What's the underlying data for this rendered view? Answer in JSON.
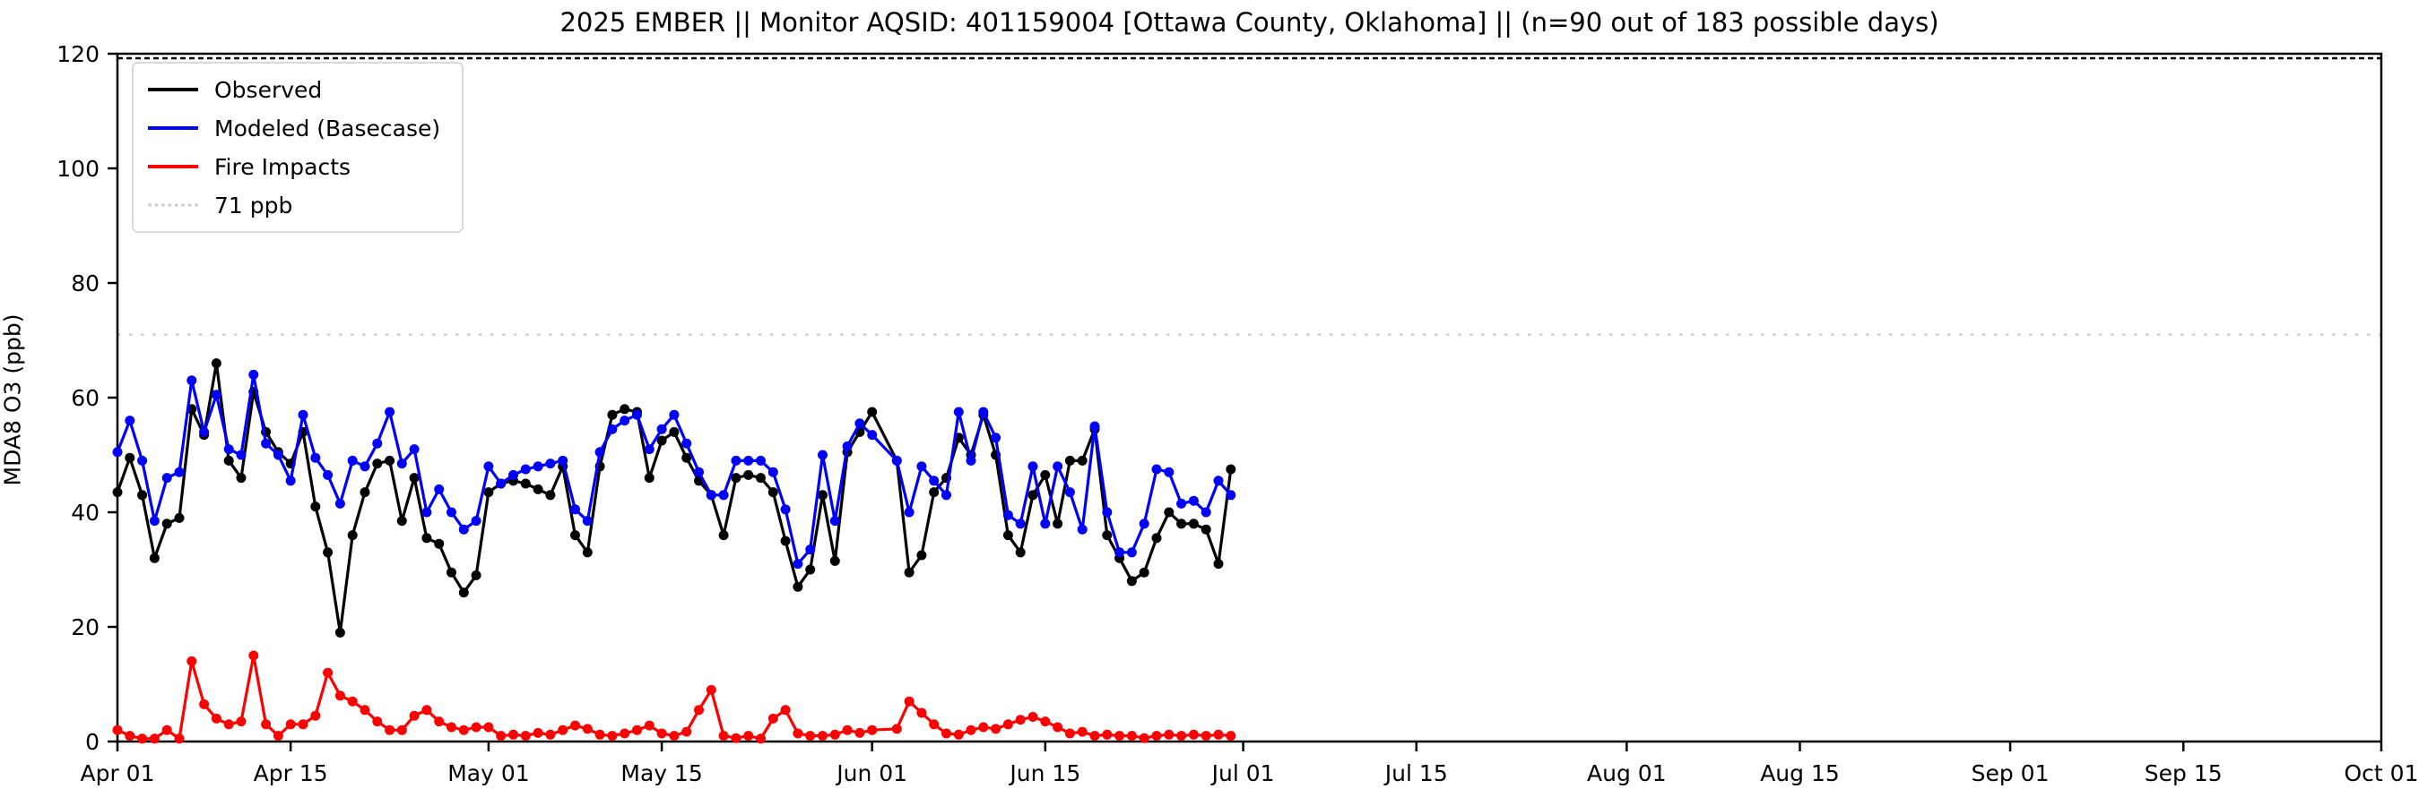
{
  "title": "2025 EMBER || Monitor AQSID: 401159004 [Ottawa County, Oklahoma] || (n=90 out of 183 possible days)",
  "axes": {
    "ylabel": "MDA8 O3 (ppb)",
    "y_ticks": [
      0,
      20,
      40,
      60,
      80,
      100,
      120
    ],
    "x_ticks": [
      {
        "label": "Apr 01",
        "day": 0
      },
      {
        "label": "Apr 15",
        "day": 14
      },
      {
        "label": "May 01",
        "day": 30
      },
      {
        "label": "May 15",
        "day": 44
      },
      {
        "label": "Jun 01",
        "day": 61
      },
      {
        "label": "Jun 15",
        "day": 75
      },
      {
        "label": "Jul 01",
        "day": 91
      },
      {
        "label": "Jul 15",
        "day": 105
      },
      {
        "label": "Aug 01",
        "day": 122
      },
      {
        "label": "Aug 15",
        "day": 136
      },
      {
        "label": "Sep 01",
        "day": 153
      },
      {
        "label": "Sep 15",
        "day": 167
      },
      {
        "label": "Oct 01",
        "day": 183
      }
    ]
  },
  "legend": [
    {
      "label": "Observed",
      "color": "#000000",
      "style": "solid"
    },
    {
      "label": "Modeled (Basecase)",
      "color": "#0000ff",
      "style": "solid"
    },
    {
      "label": "Fire Impacts",
      "color": "#ff0000",
      "style": "solid"
    },
    {
      "label": "71 ppb",
      "color": "#d3d3d3",
      "style": "dotted"
    }
  ],
  "chart_data": {
    "type": "line",
    "title": "2025 EMBER || Monitor AQSID: 401159004 [Ottawa County, Oklahoma] || (n=90 out of 183 possible days)",
    "xlabel": "",
    "ylabel": "MDA8 O3 (ppb)",
    "ylim": [
      0,
      120
    ],
    "x_span_days": 183,
    "grid": false,
    "legend_position": "upper left",
    "threshold_line": {
      "label": "71 ppb",
      "value_ppb": 71,
      "color": "#d3d3d3",
      "linestyle": "dotted"
    },
    "upper_dotted_line": {
      "value_ppb": 120,
      "color": "#000000",
      "linestyle": "dotted"
    },
    "n_days_observed": 90,
    "n_days_possible": 183,
    "missing_dates": [
      "Jun 02"
    ],
    "series_meta": [
      {
        "key": "observed",
        "name": "Observed",
        "color": "#000000"
      },
      {
        "key": "modeled",
        "name": "Modeled (Basecase)",
        "color": "#0000ff"
      },
      {
        "key": "fire",
        "name": "Fire Impacts",
        "color": "#ff0000"
      }
    ],
    "columns": [
      "date",
      "day_index",
      "observed_ppb",
      "modeled_basecase_ppb",
      "fire_impacts_ppb"
    ],
    "points": [
      [
        "Apr 01",
        0,
        43.5,
        50.5,
        2
      ],
      [
        "Apr 02",
        1,
        49.5,
        56,
        1
      ],
      [
        "Apr 03",
        2,
        43,
        49,
        0.5
      ],
      [
        "Apr 04",
        3,
        32,
        38.5,
        0.5
      ],
      [
        "Apr 05",
        4,
        38,
        46,
        2
      ],
      [
        "Apr 06",
        5,
        39,
        47,
        0.5
      ],
      [
        "Apr 07",
        6,
        58,
        63,
        14
      ],
      [
        "Apr 08",
        7,
        53.5,
        54,
        6.5
      ],
      [
        "Apr 09",
        8,
        66,
        60.5,
        4
      ],
      [
        "Apr 10",
        9,
        49,
        51,
        3
      ],
      [
        "Apr 11",
        10,
        46,
        50,
        3.5
      ],
      [
        "Apr 12",
        11,
        61,
        64,
        15
      ],
      [
        "Apr 13",
        12,
        54,
        52,
        3
      ],
      [
        "Apr 14",
        13,
        50.5,
        50,
        1
      ],
      [
        "Apr 15",
        14,
        48.5,
        45.5,
        3
      ],
      [
        "Apr 16",
        15,
        54,
        57,
        3
      ],
      [
        "Apr 17",
        16,
        41,
        49.5,
        4.5
      ],
      [
        "Apr 18",
        17,
        33,
        46.5,
        12
      ],
      [
        "Apr 19",
        18,
        19,
        41.5,
        8
      ],
      [
        "Apr 20",
        19,
        36,
        49,
        7
      ],
      [
        "Apr 21",
        20,
        43.5,
        48,
        5.5
      ],
      [
        "Apr 22",
        21,
        48.5,
        52,
        3.5
      ],
      [
        "Apr 23",
        22,
        49,
        57.5,
        2
      ],
      [
        "Apr 24",
        23,
        38.5,
        48.5,
        2
      ],
      [
        "Apr 25",
        24,
        46,
        51,
        4.5
      ],
      [
        "Apr 26",
        25,
        35.5,
        40,
        5.5
      ],
      [
        "Apr 27",
        26,
        34.5,
        44,
        3.5
      ],
      [
        "Apr 28",
        27,
        29.5,
        40,
        2.5
      ],
      [
        "Apr 29",
        28,
        26,
        37,
        2
      ],
      [
        "Apr 30",
        29,
        29,
        38.5,
        2.5
      ],
      [
        "May 01",
        30,
        43.5,
        48,
        2.5
      ],
      [
        "May 02",
        31,
        45,
        45,
        1
      ],
      [
        "May 03",
        32,
        45.5,
        46.5,
        1.2
      ],
      [
        "May 04",
        33,
        45,
        47.5,
        1
      ],
      [
        "May 05",
        34,
        44,
        48,
        1.5
      ],
      [
        "May 06",
        35,
        43,
        48.5,
        1.2
      ],
      [
        "May 07",
        36,
        48,
        49,
        2
      ],
      [
        "May 08",
        37,
        36,
        40.5,
        2.8
      ],
      [
        "May 09",
        38,
        33,
        38.5,
        2.2
      ],
      [
        "May 10",
        39,
        48,
        50.5,
        1.2
      ],
      [
        "May 11",
        40,
        57,
        54.5,
        1
      ],
      [
        "May 12",
        41,
        58,
        56,
        1.4
      ],
      [
        "May 13",
        42,
        57.5,
        57,
        2
      ],
      [
        "May 14",
        43,
        46,
        51,
        2.8
      ],
      [
        "May 15",
        44,
        52.5,
        54.5,
        1.4
      ],
      [
        "May 16",
        45,
        54,
        57,
        1
      ],
      [
        "May 17",
        46,
        49.5,
        52,
        1.7
      ],
      [
        "May 18",
        47,
        45.5,
        47,
        5.5
      ],
      [
        "May 19",
        48,
        43,
        43,
        9
      ],
      [
        "May 20",
        49,
        36,
        43,
        1
      ],
      [
        "May 21",
        50,
        46,
        49,
        0.6
      ],
      [
        "May 22",
        51,
        46.5,
        49,
        1
      ],
      [
        "May 23",
        52,
        46,
        49,
        0.5
      ],
      [
        "May 24",
        53,
        43.5,
        47,
        4
      ],
      [
        "May 25",
        54,
        35,
        40.5,
        5.5
      ],
      [
        "May 26",
        55,
        27,
        31,
        1.4
      ],
      [
        "May 27",
        56,
        30,
        33.5,
        1
      ],
      [
        "May 28",
        57,
        43,
        50,
        1
      ],
      [
        "May 29",
        58,
        31.5,
        38.5,
        1.2
      ],
      [
        "May 30",
        59,
        50.5,
        51.5,
        2
      ],
      [
        "May 31",
        60,
        54,
        55.5,
        1.5
      ],
      [
        "Jun 01",
        61,
        57.5,
        53.5,
        2
      ],
      [
        "Jun 03",
        63,
        49,
        49,
        2.2
      ],
      [
        "Jun 04",
        64,
        29.5,
        40,
        7
      ],
      [
        "Jun 05",
        65,
        32.5,
        48,
        5
      ],
      [
        "Jun 06",
        66,
        43.5,
        45.5,
        3
      ],
      [
        "Jun 07",
        67,
        46,
        43,
        1.4
      ],
      [
        "Jun 08",
        68,
        53,
        57.5,
        1.2
      ],
      [
        "Jun 09",
        69,
        50,
        49,
        2
      ],
      [
        "Jun 10",
        70,
        57,
        57.5,
        2.5
      ],
      [
        "Jun 11",
        71,
        50,
        53,
        2.2
      ],
      [
        "Jun 12",
        72,
        36,
        39.5,
        3
      ],
      [
        "Jun 13",
        73,
        33,
        38,
        3.8
      ],
      [
        "Jun 14",
        74,
        43,
        48,
        4.3
      ],
      [
        "Jun 15",
        75,
        46.5,
        38,
        3.5
      ],
      [
        "Jun 16",
        76,
        38,
        48,
        2.5
      ],
      [
        "Jun 17",
        77,
        49,
        43.5,
        1.4
      ],
      [
        "Jun 18",
        78,
        49,
        37,
        1.7
      ],
      [
        "Jun 19",
        79,
        54.5,
        55,
        1
      ],
      [
        "Jun 20",
        80,
        36,
        40,
        1.2
      ],
      [
        "Jun 21",
        81,
        32,
        33,
        1
      ],
      [
        "Jun 22",
        82,
        28,
        33,
        1
      ],
      [
        "Jun 23",
        83,
        29.5,
        38,
        0.6
      ],
      [
        "Jun 24",
        84,
        35.5,
        47.5,
        1
      ],
      [
        "Jun 25",
        85,
        40,
        47,
        1.2
      ],
      [
        "Jun 26",
        86,
        38,
        41.5,
        1
      ],
      [
        "Jun 27",
        87,
        38,
        42,
        1.2
      ],
      [
        "Jun 28",
        88,
        37,
        40,
        1
      ],
      [
        "Jun 29",
        89,
        31,
        45.5,
        1.2
      ],
      [
        "Jun 30",
        90,
        47.5,
        43,
        1
      ]
    ]
  }
}
